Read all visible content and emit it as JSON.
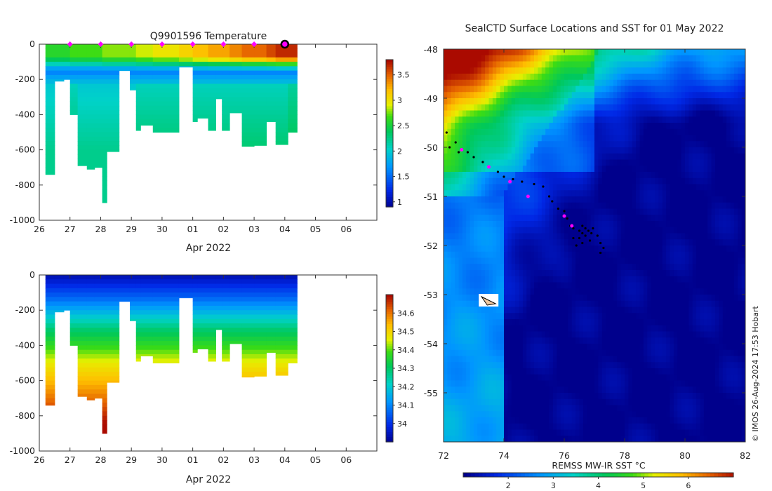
{
  "chart_data": [
    {
      "type": "heatmap",
      "name": "temperature-section",
      "title": "Q9901596  Temperature",
      "xlabel": "Apr 2022",
      "ylabel": "",
      "x_tick_labels": [
        "26",
        "27",
        "28",
        "29",
        "30",
        "01",
        "02",
        "03",
        "04",
        "05",
        "06"
      ],
      "x_range_days": [
        26,
        37
      ],
      "y_tick_values": [
        0,
        -200,
        -400,
        -600,
        -800,
        -1000
      ],
      "ylim": [
        -1000,
        0
      ],
      "colorbar": {
        "ticks": [
          3.5,
          3,
          2.5,
          2,
          1.5,
          1
        ],
        "range": [
          0.9,
          3.8
        ]
      },
      "surface_markers_days": [
        27,
        28,
        29,
        30,
        31,
        32,
        33
      ],
      "highlight_marker_day": 34,
      "profiles": [
        {
          "start": 26.2,
          "end": 26.5,
          "depth": 740,
          "t_surface": 2.6,
          "t_deep": 2.0
        },
        {
          "start": 26.5,
          "end": 26.8,
          "depth": 210,
          "t_surface": 2.6,
          "t_deep": 2.1
        },
        {
          "start": 26.8,
          "end": 27.0,
          "depth": 200,
          "t_surface": 2.6,
          "t_deep": 2.1
        },
        {
          "start": 27.0,
          "end": 27.25,
          "depth": 400,
          "t_surface": 2.7,
          "t_deep": 2.1
        },
        {
          "start": 27.25,
          "end": 27.55,
          "depth": 690,
          "t_surface": 2.7,
          "t_deep": 2.0
        },
        {
          "start": 27.55,
          "end": 27.8,
          "depth": 710,
          "t_surface": 2.7,
          "t_deep": 2.0
        },
        {
          "start": 27.8,
          "end": 28.05,
          "depth": 700,
          "t_surface": 2.7,
          "t_deep": 2.0
        },
        {
          "start": 28.05,
          "end": 28.2,
          "depth": 900,
          "t_surface": 2.8,
          "t_deep": 2.0
        },
        {
          "start": 28.2,
          "end": 28.6,
          "depth": 610,
          "t_surface": 2.8,
          "t_deep": 2.0
        },
        {
          "start": 28.6,
          "end": 28.95,
          "depth": 150,
          "t_surface": 2.8,
          "t_deep": 2.1
        },
        {
          "start": 28.95,
          "end": 29.15,
          "depth": 260,
          "t_surface": 2.8,
          "t_deep": 2.0
        },
        {
          "start": 29.15,
          "end": 29.3,
          "depth": 490,
          "t_surface": 2.9,
          "t_deep": 2.1
        },
        {
          "start": 29.3,
          "end": 29.7,
          "depth": 460,
          "t_surface": 2.9,
          "t_deep": 2.1
        },
        {
          "start": 29.7,
          "end": 30.55,
          "depth": 500,
          "t_surface": 3.0,
          "t_deep": 2.1
        },
        {
          "start": 30.55,
          "end": 31.0,
          "depth": 130,
          "t_surface": 3.1,
          "t_deep": 2.1
        },
        {
          "start": 31.0,
          "end": 31.15,
          "depth": 440,
          "t_surface": 3.2,
          "t_deep": 2.1
        },
        {
          "start": 31.15,
          "end": 31.5,
          "depth": 420,
          "t_surface": 3.2,
          "t_deep": 2.1
        },
        {
          "start": 31.5,
          "end": 31.75,
          "depth": 490,
          "t_surface": 3.3,
          "t_deep": 2.1
        },
        {
          "start": 31.75,
          "end": 31.95,
          "depth": 310,
          "t_surface": 3.3,
          "t_deep": 2.1
        },
        {
          "start": 31.95,
          "end": 32.2,
          "depth": 490,
          "t_surface": 3.3,
          "t_deep": 2.1
        },
        {
          "start": 32.2,
          "end": 32.6,
          "depth": 390,
          "t_surface": 3.4,
          "t_deep": 2.1
        },
        {
          "start": 32.6,
          "end": 33.0,
          "depth": 580,
          "t_surface": 3.5,
          "t_deep": 2.1
        },
        {
          "start": 33.0,
          "end": 33.4,
          "depth": 575,
          "t_surface": 3.5,
          "t_deep": 2.1
        },
        {
          "start": 33.4,
          "end": 33.7,
          "depth": 440,
          "t_surface": 3.6,
          "t_deep": 2.1
        },
        {
          "start": 33.7,
          "end": 34.1,
          "depth": 570,
          "t_surface": 3.7,
          "t_deep": 2.1
        },
        {
          "start": 34.1,
          "end": 34.4,
          "depth": 500,
          "t_surface": 3.7,
          "t_deep": 2.2
        }
      ]
    },
    {
      "type": "heatmap",
      "name": "salinity-section",
      "title": "",
      "xlabel": "Apr 2022",
      "x_tick_labels": [
        "26",
        "27",
        "28",
        "29",
        "30",
        "01",
        "02",
        "03",
        "04",
        "05",
        "06"
      ],
      "x_range_days": [
        26,
        37
      ],
      "y_tick_values": [
        0,
        -200,
        -400,
        -600,
        -800,
        -1000
      ],
      "ylim": [
        -1000,
        0
      ],
      "colorbar": {
        "ticks": [
          34.6,
          34.5,
          34.4,
          34.3,
          34.2,
          34.1,
          34
        ],
        "range": [
          33.9,
          34.7
        ]
      },
      "profiles": [
        {
          "start": 26.2,
          "end": 26.5,
          "depth": 740
        },
        {
          "start": 26.5,
          "end": 26.8,
          "depth": 210
        },
        {
          "start": 26.8,
          "end": 27.0,
          "depth": 200
        },
        {
          "start": 27.0,
          "end": 27.25,
          "depth": 400
        },
        {
          "start": 27.25,
          "end": 27.55,
          "depth": 690
        },
        {
          "start": 27.55,
          "end": 27.8,
          "depth": 710
        },
        {
          "start": 27.8,
          "end": 28.05,
          "depth": 700
        },
        {
          "start": 28.05,
          "end": 28.2,
          "depth": 900
        },
        {
          "start": 28.2,
          "end": 28.6,
          "depth": 610
        },
        {
          "start": 28.6,
          "end": 28.95,
          "depth": 150
        },
        {
          "start": 28.95,
          "end": 29.15,
          "depth": 260
        },
        {
          "start": 29.15,
          "end": 29.3,
          "depth": 490
        },
        {
          "start": 29.3,
          "end": 29.7,
          "depth": 460
        },
        {
          "start": 29.7,
          "end": 30.55,
          "depth": 500
        },
        {
          "start": 30.55,
          "end": 31.0,
          "depth": 130
        },
        {
          "start": 31.0,
          "end": 31.15,
          "depth": 440
        },
        {
          "start": 31.15,
          "end": 31.5,
          "depth": 420
        },
        {
          "start": 31.5,
          "end": 31.75,
          "depth": 490
        },
        {
          "start": 31.75,
          "end": 31.95,
          "depth": 310
        },
        {
          "start": 31.95,
          "end": 32.2,
          "depth": 490
        },
        {
          "start": 32.2,
          "end": 32.6,
          "depth": 390
        },
        {
          "start": 32.6,
          "end": 33.0,
          "depth": 580
        },
        {
          "start": 33.0,
          "end": 33.4,
          "depth": 575
        },
        {
          "start": 33.4,
          "end": 33.7,
          "depth": 440
        },
        {
          "start": 33.7,
          "end": 34.1,
          "depth": 570
        },
        {
          "start": 34.1,
          "end": 34.4,
          "depth": 500
        }
      ]
    },
    {
      "type": "heatmap",
      "name": "sst-map",
      "title": "SealCTD Surface Locations and SST for 01 May 2022",
      "x_tick_labels": [
        "72",
        "74",
        "76",
        "78",
        "80",
        "82"
      ],
      "y_tick_labels": [
        "-48",
        "-49",
        "-50",
        "-51",
        "-52",
        "-53",
        "-54",
        "-55"
      ],
      "xlim": [
        72,
        82
      ],
      "ylim": [
        -56,
        -48
      ],
      "colorbar_label": "REMSS MW-IR SST °C",
      "colorbar_ticks": [
        2,
        3,
        4,
        5,
        6
      ],
      "colorbar_range": [
        1.0,
        7.0
      ],
      "track_points": [
        [
          72.1,
          -49.7
        ],
        [
          72.2,
          -50.0
        ],
        [
          72.4,
          -49.9
        ],
        [
          72.5,
          -50.1
        ],
        [
          72.8,
          -50.1
        ],
        [
          73.0,
          -50.2
        ],
        [
          73.3,
          -50.3
        ],
        [
          73.5,
          -50.4
        ],
        [
          73.8,
          -50.5
        ],
        [
          74.0,
          -50.6
        ],
        [
          74.3,
          -50.65
        ],
        [
          74.6,
          -50.7
        ],
        [
          75.0,
          -50.75
        ],
        [
          75.3,
          -50.8
        ],
        [
          75.5,
          -51.0
        ],
        [
          75.6,
          -51.1
        ],
        [
          75.8,
          -51.25
        ],
        [
          76.0,
          -51.3
        ],
        [
          76.1,
          -51.45
        ],
        [
          76.2,
          -51.6
        ],
        [
          76.3,
          -51.65
        ],
        [
          76.5,
          -51.7
        ],
        [
          76.6,
          -51.75
        ],
        [
          76.7,
          -51.8
        ],
        [
          76.8,
          -51.7
        ],
        [
          76.9,
          -51.75
        ],
        [
          76.5,
          -51.85
        ],
        [
          76.6,
          -51.95
        ],
        [
          76.4,
          -52.0
        ],
        [
          76.7,
          -51.65
        ],
        [
          76.85,
          -51.9
        ],
        [
          77.1,
          -51.8
        ],
        [
          77.2,
          -51.95
        ],
        [
          77.3,
          -52.05
        ],
        [
          77.2,
          -52.15
        ],
        [
          76.3,
          -51.85
        ],
        [
          76.6,
          -51.6
        ],
        [
          76.95,
          -51.65
        ]
      ],
      "magenta_points": [
        [
          72.6,
          -50.05
        ],
        [
          73.5,
          -50.4
        ],
        [
          74.2,
          -50.7
        ],
        [
          74.8,
          -51.0
        ],
        [
          76.0,
          -51.4
        ],
        [
          76.25,
          -51.6
        ]
      ],
      "watermark": "© IMOS 26-Aug-2024 17:53 Hobart"
    }
  ]
}
